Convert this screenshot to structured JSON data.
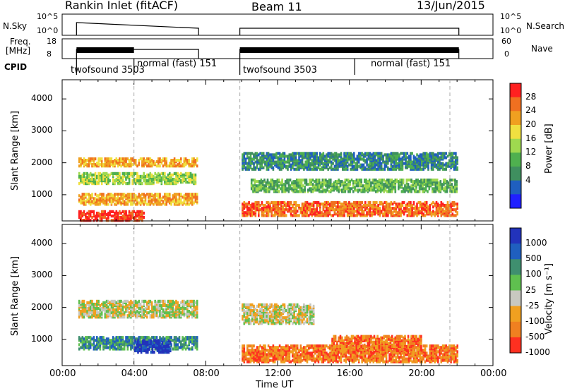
{
  "header": {
    "title": "Rankin Inlet (fitACF)",
    "beam": "Beam 11",
    "date": "13/Jun/2015"
  },
  "noise_panel": {
    "left_label": "N.Sky",
    "right_label": "N.Search",
    "ticks": [
      "10^5",
      "10^0"
    ]
  },
  "freq_panel": {
    "left_label_1": "Freq.",
    "left_label_2": "[MHz]",
    "left_ticks": [
      "18",
      "8"
    ],
    "right_ticks": [
      "60",
      "0"
    ],
    "right_label": "Nave"
  },
  "cpid": {
    "label": "CPID",
    "modes": [
      {
        "name": "twofsound 3503",
        "start_h": 0.8,
        "end_h": 4.0
      },
      {
        "name": "normal (fast) 151",
        "start_h": 4.0,
        "end_h": 7.6
      },
      {
        "name": "twofsound 3503",
        "start_h": 9.9,
        "end_h": 16.3
      },
      {
        "name": "normal (fast) 151",
        "start_h": 16.3,
        "end_h": 21.6
      }
    ]
  },
  "chart_data": [
    {
      "type": "heatmap",
      "name": "power",
      "ylabel": "Slant Range [km]",
      "xlabel": "Time UT",
      "x_ticks": [
        "00:00",
        "04:00",
        "08:00",
        "12:00",
        "16:00",
        "20:00",
        "00:00"
      ],
      "y_ticks": [
        "1000",
        "2000",
        "3000",
        "4000"
      ],
      "xlim": [
        0,
        24
      ],
      "ylim": [
        180,
        4600
      ],
      "colorbar_label": "Power [dB]",
      "colorbar_ticks": [
        "4",
        "8",
        "12",
        "16",
        "20",
        "24",
        "28"
      ],
      "colors": [
        "#2020ff",
        "#1f5fbf",
        "#3f8f5f",
        "#4fb04f",
        "#9fd94f",
        "#f0e040",
        "#f0a020",
        "#f07020",
        "#ff2020"
      ],
      "data_windows_h": [
        [
          0.8,
          7.6
        ],
        [
          9.9,
          22.1
        ]
      ],
      "clusters": [
        {
          "t": [
            0.9,
            7.5
          ],
          "r": [
            1900,
            2150
          ],
          "level": 6
        },
        {
          "t": [
            0.9,
            7.4
          ],
          "r": [
            1350,
            1700
          ],
          "level": 4
        },
        {
          "t": [
            0.9,
            7.5
          ],
          "r": [
            700,
            1050
          ],
          "level": 6
        },
        {
          "t": [
            0.9,
            4.5
          ],
          "r": [
            200,
            500
          ],
          "level": 8
        },
        {
          "t": [
            10.0,
            22.0
          ],
          "r": [
            350,
            800
          ],
          "level": 7
        },
        {
          "t": [
            10.5,
            22.0
          ],
          "r": [
            1100,
            1500
          ],
          "level": 3
        },
        {
          "t": [
            10.0,
            22.0
          ],
          "r": [
            1800,
            2300
          ],
          "level": 2
        }
      ]
    },
    {
      "type": "heatmap",
      "name": "velocity",
      "ylabel": "Slant Range [km]",
      "xlabel": "Time UT",
      "x_ticks": [
        "00:00",
        "04:00",
        "08:00",
        "12:00",
        "16:00",
        "20:00",
        "00:00"
      ],
      "y_ticks": [
        "1000",
        "2000",
        "3000",
        "4000"
      ],
      "xlim": [
        0,
        24
      ],
      "ylim": [
        180,
        4600
      ],
      "colorbar_label": "Velocity [m s⁻¹]",
      "colorbar_ticks": [
        "1000",
        "500",
        "100",
        "25",
        "-25",
        "-100",
        "-500",
        "-1000"
      ],
      "colors": [
        "#2233bb",
        "#1f5fbf",
        "#3f8f6f",
        "#5fc04f",
        "#c8c8c0",
        "#f0a020",
        "#f08020",
        "#ff3020"
      ],
      "data_windows_h": [
        [
          0.8,
          7.6
        ],
        [
          9.9,
          22.1
        ]
      ],
      "clusters": [
        {
          "t": [
            0.9,
            7.5
          ],
          "r": [
            1700,
            2200
          ],
          "level": 4
        },
        {
          "t": [
            0.9,
            7.5
          ],
          "r": [
            700,
            1100
          ],
          "level": 2
        },
        {
          "t": [
            4.0,
            6.0
          ],
          "r": [
            600,
            1000
          ],
          "level": 0
        },
        {
          "t": [
            10.0,
            22.0
          ],
          "r": [
            300,
            800
          ],
          "level": 6
        },
        {
          "t": [
            10.0,
            14.0
          ],
          "r": [
            1500,
            2100
          ],
          "level": 4
        },
        {
          "t": [
            15.0,
            20.0
          ],
          "r": [
            600,
            1100
          ],
          "level": 6
        }
      ]
    }
  ]
}
